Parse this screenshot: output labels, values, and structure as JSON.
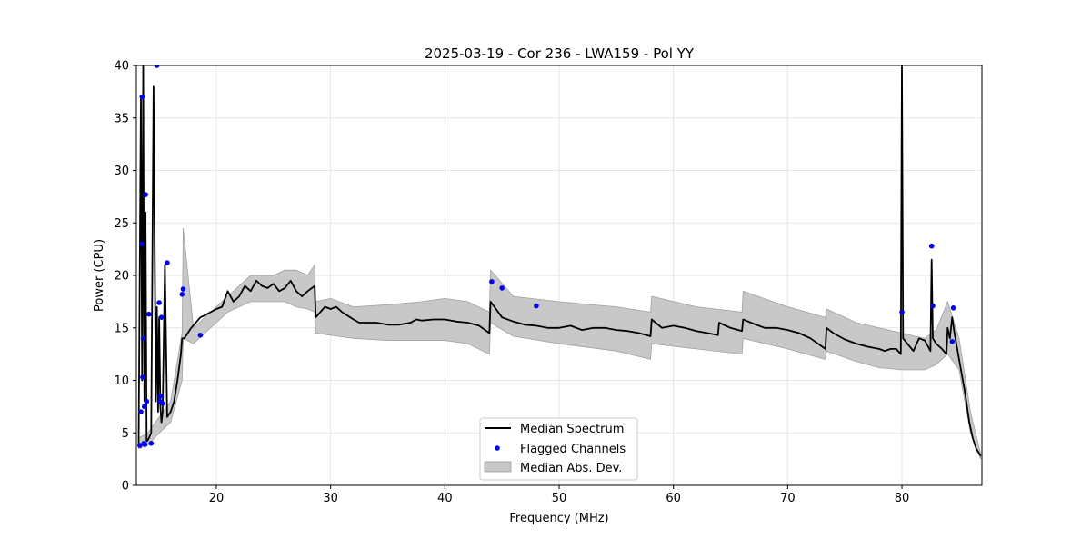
{
  "chart_data": {
    "type": "line",
    "title": "2025-03-19 - Cor 236 - LWA159 - Pol YY",
    "xlabel": "Frequency (MHz)",
    "ylabel": "Power (CPU)",
    "xlim": [
      13,
      87
    ],
    "ylim": [
      0,
      40
    ],
    "x_ticks": [
      20,
      30,
      40,
      50,
      60,
      70,
      80
    ],
    "y_ticks": [
      0,
      5,
      10,
      15,
      20,
      25,
      30,
      35,
      40
    ],
    "x_tick_labels": [
      "20",
      "30",
      "40",
      "50",
      "60",
      "70",
      "80"
    ],
    "y_tick_labels": [
      "0",
      "5",
      "10",
      "15",
      "20",
      "25",
      "30",
      "35",
      "40"
    ],
    "grid": true,
    "legend_position": "bottom-center",
    "legend": {
      "median": "Median Spectrum",
      "flagged": "Flagged Channels",
      "mad": "Median Abs. Dev."
    },
    "colors": {
      "median": "#000000",
      "flagged": "#0000ff",
      "mad": "#c8c8c8",
      "grid": "#e6e6e6"
    },
    "series": [
      {
        "name": "Median Spectrum",
        "x": [
          13.2,
          13.4,
          13.5,
          13.6,
          13.7,
          13.8,
          13.9,
          14.0,
          14.1,
          14.3,
          14.5,
          14.7,
          14.8,
          14.9,
          15.0,
          15.1,
          15.2,
          15.3,
          15.5,
          15.7,
          16.0,
          16.3,
          16.6,
          16.9,
          17.0,
          17.2,
          17.5,
          17.8,
          18.2,
          18.6,
          19.0,
          19.5,
          20.0,
          20.5,
          21.0,
          21.5,
          22.0,
          22.5,
          23.0,
          23.5,
          24.0,
          24.5,
          25.0,
          25.5,
          26.0,
          26.5,
          27.0,
          27.5,
          28.0,
          28.6,
          28.7,
          29.5,
          30.0,
          30.5,
          31.0,
          32.0,
          32.5,
          33.0,
          34.0,
          35.0,
          36.0,
          37.0,
          37.5,
          38.0,
          39.0,
          40.0,
          41.0,
          42.0,
          43.0,
          43.9,
          44.0,
          45.0,
          46.0,
          47.0,
          48.0,
          49.0,
          50.0,
          51.0,
          52.0,
          53.0,
          54.0,
          55.0,
          56.0,
          57.0,
          58.0,
          58.1,
          59.0,
          60.0,
          61.0,
          62.0,
          63.0,
          63.9,
          64.0,
          65.0,
          66.0,
          66.1,
          67.0,
          68.0,
          69.0,
          70.0,
          71.0,
          72.0,
          73.3,
          73.4,
          74.0,
          75.0,
          76.0,
          77.0,
          78.0,
          78.5,
          79.0,
          79.5,
          79.9,
          80.0,
          80.1,
          81.0,
          81.5,
          82.0,
          82.5,
          82.6,
          82.7,
          83.0,
          83.5,
          83.9,
          84.0,
          84.2,
          84.4,
          84.6,
          85.0,
          85.5,
          85.9,
          86.2,
          86.5,
          86.9
        ],
        "y": [
          4.0,
          37.0,
          10.0,
          40.0,
          8.0,
          26.0,
          4.2,
          4.3,
          4.5,
          5.0,
          38.0,
          8.0,
          17.0,
          7.0,
          16.0,
          7.5,
          6.0,
          7.0,
          21.0,
          6.5,
          7.0,
          8.0,
          10.0,
          12.5,
          14.0,
          14.0,
          14.5,
          15.0,
          15.5,
          16.0,
          16.2,
          16.5,
          16.8,
          17.0,
          18.5,
          17.5,
          18.0,
          19.0,
          18.5,
          19.5,
          19.0,
          18.8,
          19.2,
          18.5,
          18.8,
          19.5,
          18.5,
          18.0,
          18.5,
          19.0,
          16.0,
          17.0,
          16.8,
          17.0,
          16.5,
          15.8,
          15.5,
          15.5,
          15.5,
          15.3,
          15.3,
          15.5,
          15.8,
          15.7,
          15.8,
          15.8,
          15.6,
          15.5,
          15.2,
          14.5,
          17.5,
          16.0,
          15.6,
          15.3,
          15.2,
          15.0,
          15.0,
          15.2,
          14.8,
          15.0,
          15.0,
          14.8,
          14.7,
          14.5,
          14.2,
          15.8,
          15.0,
          15.2,
          15.0,
          14.7,
          14.5,
          14.3,
          15.5,
          15.0,
          14.7,
          15.8,
          15.4,
          15.0,
          15.0,
          14.8,
          14.5,
          14.0,
          13.0,
          15.0,
          14.5,
          13.9,
          13.5,
          13.2,
          13.0,
          12.8,
          13.0,
          13.0,
          12.5,
          40.0,
          14.0,
          12.8,
          14.0,
          13.8,
          12.8,
          21.5,
          14.0,
          13.5,
          13.0,
          12.5,
          15.0,
          14.0,
          16.0,
          14.5,
          12.0,
          9.0,
          6.0,
          4.5,
          3.5,
          2.8
        ]
      },
      {
        "name": "Median Abs. Dev.",
        "x": [
          13.2,
          14.0,
          15.0,
          16.0,
          17.0,
          17.1,
          18.0,
          19.0,
          20.0,
          21.0,
          22.0,
          23.0,
          24.0,
          25.0,
          26.0,
          27.0,
          28.0,
          28.6,
          28.7,
          30.0,
          32.0,
          35.0,
          38.0,
          40.0,
          42.0,
          43.9,
          44.0,
          46.0,
          50.0,
          55.0,
          58.0,
          58.1,
          62.0,
          66.0,
          66.1,
          70.0,
          73.3,
          73.4,
          76.0,
          78.0,
          80.0,
          82.0,
          83.0,
          84.0,
          85.0,
          86.0,
          86.9
        ],
        "upper": [
          4.5,
          5.0,
          6.5,
          8.0,
          14.5,
          24.5,
          15.0,
          16.0,
          17.0,
          18.0,
          19.0,
          20.0,
          20.0,
          20.0,
          20.5,
          20.5,
          20.0,
          21.0,
          17.5,
          17.8,
          17.0,
          17.2,
          17.5,
          17.8,
          17.5,
          16.5,
          20.5,
          18.0,
          17.5,
          17.0,
          16.5,
          18.0,
          17.0,
          16.5,
          18.5,
          17.0,
          16.0,
          16.8,
          15.5,
          15.0,
          14.5,
          14.0,
          14.8,
          17.5,
          14.0,
          7.0,
          3.0
        ],
        "lower": [
          3.5,
          3.8,
          5.0,
          6.0,
          10.0,
          14.0,
          13.5,
          14.5,
          15.5,
          16.5,
          17.0,
          17.5,
          17.5,
          17.5,
          17.5,
          17.0,
          16.8,
          16.5,
          14.5,
          14.3,
          14.0,
          13.8,
          13.8,
          13.8,
          13.5,
          12.5,
          15.5,
          14.2,
          13.5,
          12.8,
          12.0,
          13.5,
          13.0,
          12.5,
          14.0,
          13.0,
          12.0,
          12.8,
          11.8,
          11.2,
          11.0,
          11.0,
          11.5,
          12.5,
          11.0,
          5.0,
          2.5
        ]
      },
      {
        "name": "Flagged Channels",
        "x": [
          13.3,
          13.4,
          13.45,
          13.5,
          13.55,
          13.6,
          13.65,
          13.7,
          13.75,
          13.8,
          13.9,
          14.1,
          14.3,
          14.8,
          15.0,
          15.05,
          15.1,
          15.2,
          15.3,
          15.7,
          17.0,
          17.1,
          18.6,
          44.1,
          45.0,
          48.0,
          80.0,
          82.6,
          82.7,
          84.4,
          84.5
        ],
        "y": [
          3.8,
          7.0,
          23.0,
          37.0,
          10.3,
          14.0,
          4.0,
          7.5,
          3.9,
          27.7,
          8.0,
          16.3,
          4.0,
          40.0,
          17.4,
          8.0,
          8.5,
          16.0,
          7.8,
          21.2,
          18.2,
          18.7,
          14.3,
          19.4,
          18.8,
          17.1,
          16.5,
          22.8,
          17.1,
          13.7,
          16.9
        ]
      }
    ]
  }
}
